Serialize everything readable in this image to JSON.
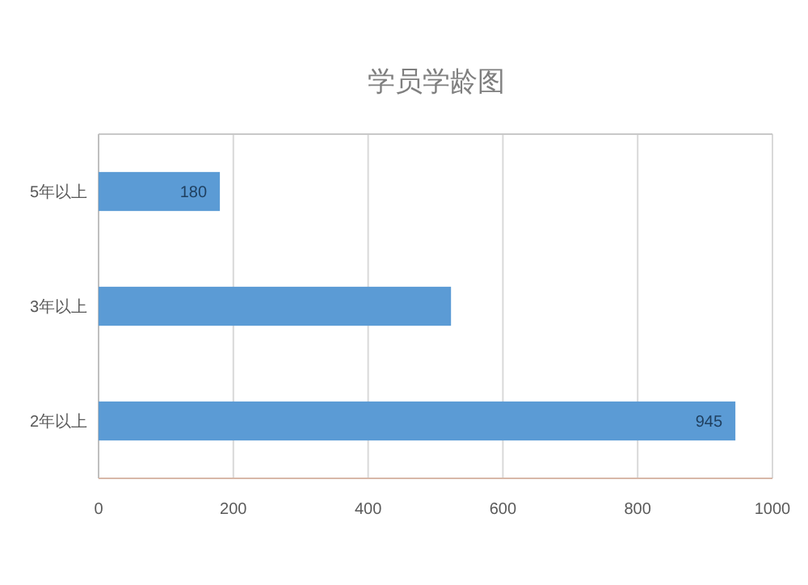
{
  "chart_data": {
    "type": "bar",
    "orientation": "horizontal",
    "title": "学员学龄图",
    "categories": [
      "5年以上",
      "3年以上",
      "2年以上"
    ],
    "values": [
      180,
      523,
      945
    ],
    "value_labels": [
      "180",
      null,
      "945"
    ],
    "color": "#5b9bd5",
    "xlim": [
      0,
      1000
    ],
    "xticks": [
      0,
      200,
      400,
      600,
      800,
      1000
    ],
    "grid": "x"
  }
}
